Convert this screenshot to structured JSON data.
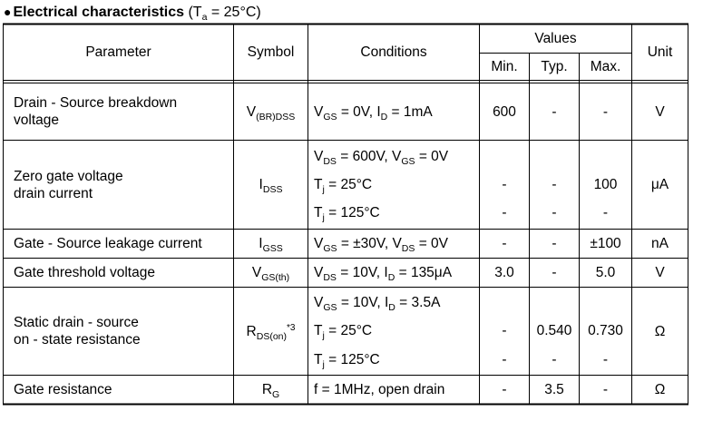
{
  "title": {
    "bullet": "●",
    "bold": "Electrical characteristics",
    "cond_open": " (T",
    "cond_sub": "a",
    "cond_rest": " = 25°C)"
  },
  "header": {
    "parameter": "Parameter",
    "symbol": "Symbol",
    "conditions": "Conditions",
    "values": "Values",
    "min": "Min.",
    "typ": "Typ.",
    "max": "Max.",
    "unit": "Unit"
  },
  "rows": {
    "breakdown": {
      "param_l1": "Drain - Source breakdown",
      "param_l2": "voltage",
      "sym": "V",
      "sym_sub": "(BR)DSS",
      "cond": {
        "a": "V",
        "a_sub": "GS",
        "b": " = 0V, I",
        "b_sub": "D",
        "c": " = 1mA"
      },
      "min": "600",
      "typ": "-",
      "max": "-",
      "unit": "V"
    },
    "leakage_zero": {
      "param_l1": "Zero gate voltage",
      "param_l2": "drain current",
      "sym": "I",
      "sym_sub": "DSS",
      "cond1": {
        "a": "V",
        "a_sub": "DS",
        "b": " = 600V, V",
        "b_sub": "GS",
        "c": " = 0V"
      },
      "cond2": {
        "a": "T",
        "a_sub": "j",
        "b": " =  25°C"
      },
      "cond3": {
        "a": "T",
        "a_sub": "j",
        "b": " =  125°C"
      },
      "r2": {
        "min": "-",
        "typ": "-",
        "max": "100"
      },
      "r3": {
        "min": "-",
        "typ": "-",
        "max": "-"
      },
      "unit": "μA"
    },
    "gate_leak": {
      "param": "Gate - Source leakage current",
      "sym": "I",
      "sym_sub": "GSS",
      "cond": {
        "a": "V",
        "a_sub": "GS",
        "b": " = ±30V, V",
        "b_sub": "DS",
        "c": " = 0V"
      },
      "min": "-",
      "typ": "-",
      "max": "±100",
      "unit": "nA"
    },
    "threshold": {
      "param": "Gate threshold voltage",
      "sym": "V",
      "sym_sub": "GS(th)",
      "cond": {
        "a": "V",
        "a_sub": "DS",
        "b": " = 10V, I",
        "b_sub": "D",
        "c": " = 135μA"
      },
      "min": "3.0",
      "typ": "-",
      "max": "5.0",
      "unit": "V"
    },
    "rdson": {
      "param_l1": "Static drain - source",
      "param_l2": "on - state resistance",
      "sym": "R",
      "sym_sub": "DS(on)",
      "sym_sup": "*3",
      "cond1": {
        "a": "V",
        "a_sub": "GS",
        "b": " = 10V, I",
        "b_sub": "D",
        "c": " = 3.5A"
      },
      "cond2": {
        "a": "T",
        "a_sub": "j",
        "b": " =  25°C"
      },
      "cond3": {
        "a": "T",
        "a_sub": "j",
        "b": " =  125°C"
      },
      "r2": {
        "min": "-",
        "typ": "0.540",
        "max": "0.730"
      },
      "r3": {
        "min": "-",
        "typ": "-",
        "max": "-"
      },
      "unit": "Ω"
    },
    "gate_res": {
      "param": "Gate resistance",
      "sym": "R",
      "sym_sub": "G",
      "cond": "f = 1MHz, open drain",
      "min": "-",
      "typ": "3.5",
      "max": "-",
      "unit": "Ω"
    }
  }
}
